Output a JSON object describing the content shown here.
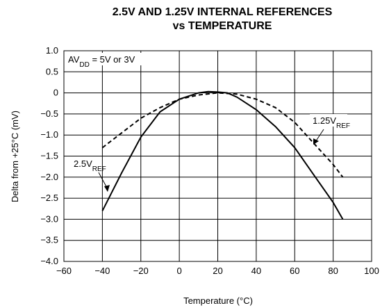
{
  "chart_data": {
    "type": "line",
    "title": [
      "2.5V AND 1.25V INTERNAL REFERENCES",
      "vs TEMPERATURE"
    ],
    "xlabel": "Temperature (°C)",
    "ylabel": "Delta from +25°C (mV)",
    "note": {
      "text": "AV",
      "sub": "DD",
      "tail": " = 5V or 3V"
    },
    "xlim": [
      -60,
      100
    ],
    "ylim": [
      -4.0,
      1.0
    ],
    "xticks": [
      {
        "value": -60,
        "label": "−60"
      },
      {
        "value": -40,
        "label": "−40"
      },
      {
        "value": -20,
        "label": "−20"
      },
      0,
      20,
      40,
      60,
      80,
      100
    ],
    "yticks": [
      {
        "value": 1.0,
        "label": "1.0"
      },
      0.5,
      0,
      {
        "value": -0.5,
        "label": "−0.5"
      },
      {
        "value": -1.0,
        "label": "−1.0"
      },
      {
        "value": -1.5,
        "label": "−1.5"
      },
      {
        "value": -2.0,
        "label": "−2.0"
      },
      {
        "value": -2.5,
        "label": "−2.5"
      },
      {
        "value": -3.0,
        "label": "−3.0"
      },
      {
        "value": -3.5,
        "label": "−3.5"
      },
      {
        "value": -4.0,
        "label": "−4.0"
      }
    ],
    "grid": true,
    "series": [
      {
        "name": "2.5V",
        "name_sub": "REF",
        "color": "#000000",
        "dash": false,
        "x": [
          -40,
          -30,
          -20,
          -10,
          0,
          10,
          15,
          20,
          25,
          30,
          40,
          50,
          60,
          70,
          80,
          85
        ],
        "values": [
          -2.8,
          -1.9,
          -1.05,
          -0.45,
          -0.15,
          0.0,
          0.03,
          0.02,
          0.0,
          -0.1,
          -0.4,
          -0.8,
          -1.3,
          -1.95,
          -2.6,
          -3.0
        ]
      },
      {
        "name": "1.25V",
        "name_sub": "REF",
        "color": "#000000",
        "dash": true,
        "x": [
          -40,
          -30,
          -20,
          -10,
          0,
          10,
          20,
          30,
          40,
          50,
          60,
          70,
          80,
          85
        ],
        "values": [
          -1.3,
          -0.95,
          -0.6,
          -0.35,
          -0.15,
          -0.05,
          0.0,
          -0.03,
          -0.15,
          -0.35,
          -0.7,
          -1.2,
          -1.7,
          -2.0
        ]
      }
    ]
  }
}
